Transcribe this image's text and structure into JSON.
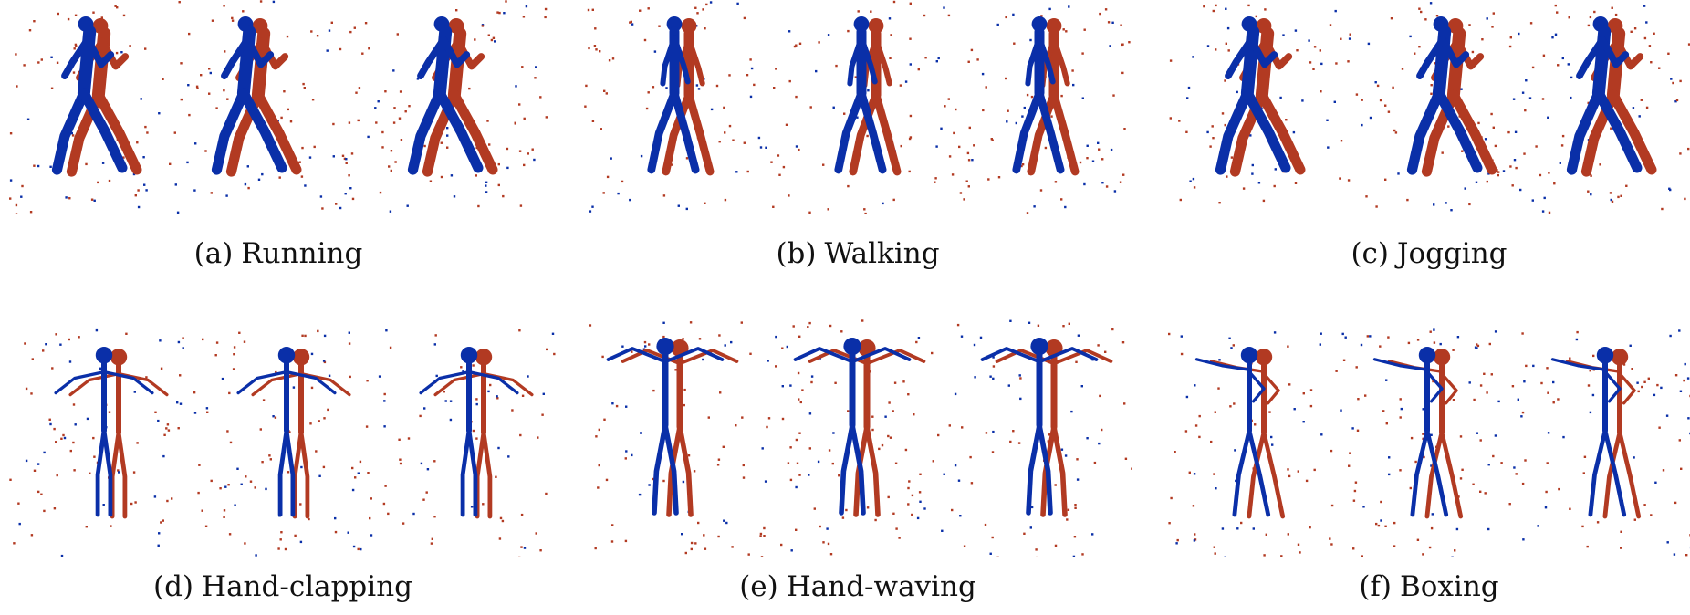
{
  "colors": {
    "on_polarity": "#0a2fa8",
    "off_polarity": "#b23a22",
    "background": "#ffffff"
  },
  "panels": [
    {
      "tag": "(a)",
      "label": "Running",
      "pose": "run"
    },
    {
      "tag": "(b)",
      "label": "Walking",
      "pose": "walk"
    },
    {
      "tag": "(c)",
      "label": "Jogging",
      "pose": "jog"
    },
    {
      "tag": "(d)",
      "label": "Hand-clapping",
      "pose": "clap"
    },
    {
      "tag": "(e)",
      "label": "Hand-waving",
      "pose": "wave"
    },
    {
      "tag": "(f)",
      "label": "Boxing",
      "pose": "box"
    }
  ]
}
